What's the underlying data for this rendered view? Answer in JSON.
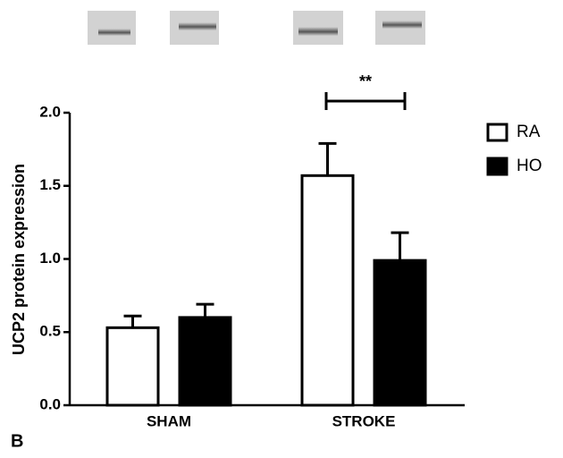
{
  "chart_data": {
    "type": "bar",
    "panel_label": "B",
    "ylabel": "UCP2 protein expression",
    "categories": [
      "SHAM",
      "STROKE"
    ],
    "series": [
      {
        "name": "RA",
        "color": "#ffffff",
        "edgecolor": "#000000",
        "values": [
          0.53,
          1.57
        ],
        "errors": [
          0.08,
          0.22
        ]
      },
      {
        "name": "HO",
        "color": "#000000",
        "edgecolor": "#000000",
        "values": [
          0.6,
          0.99
        ],
        "errors": [
          0.09,
          0.19
        ]
      }
    ],
    "ylim": [
      0,
      2.0
    ],
    "yticks": [
      {
        "value": 0,
        "label": "0.0"
      },
      {
        "value": 0.5,
        "label": "0.5"
      },
      {
        "value": 1.0,
        "label": "1.0"
      },
      {
        "value": 1.5,
        "label": "1.5"
      },
      {
        "value": 2.0,
        "label": "2.0"
      }
    ],
    "significance": "**"
  }
}
